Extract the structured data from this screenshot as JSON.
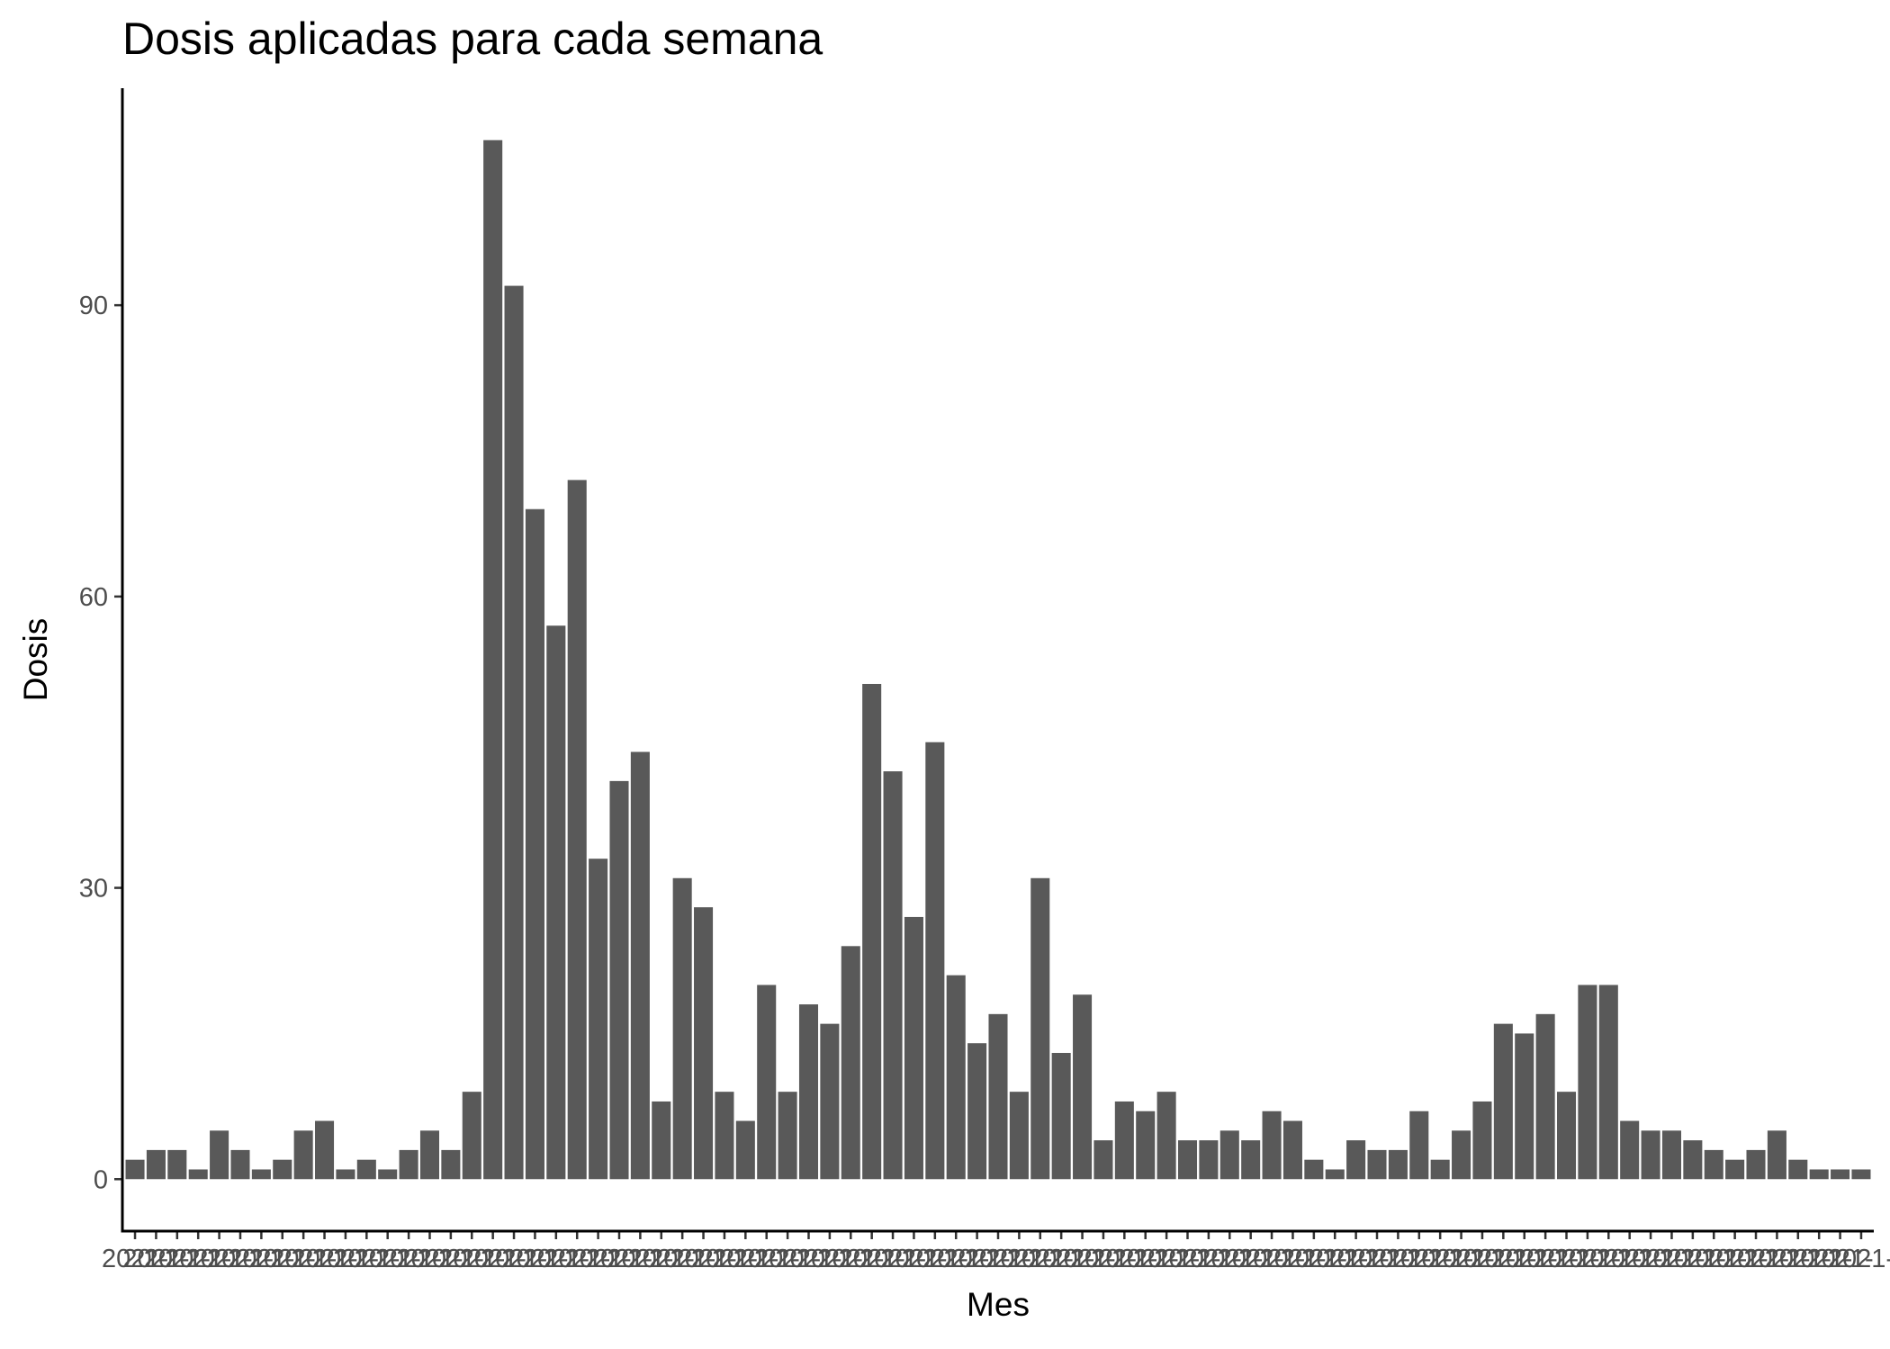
{
  "chart_data": {
    "type": "bar",
    "title": "Dosis aplicadas para cada semana",
    "xlabel": "Mes",
    "ylabel": "Dosis",
    "x_tick_text": "2021-",
    "values": [
      2,
      3,
      3,
      1,
      5,
      3,
      1,
      2,
      5,
      6,
      1,
      2,
      1,
      3,
      5,
      3,
      9,
      107,
      92,
      69,
      57,
      72,
      33,
      41,
      44,
      8,
      31,
      28,
      9,
      6,
      20,
      9,
      18,
      16,
      24,
      51,
      42,
      27,
      45,
      21,
      14,
      17,
      9,
      31,
      13,
      19,
      4,
      8,
      7,
      9,
      4,
      4,
      5,
      4,
      7,
      6,
      2,
      1,
      4,
      3,
      3,
      7,
      2,
      5,
      8,
      16,
      15,
      17,
      9,
      20,
      20,
      6,
      5,
      5,
      4,
      3,
      2,
      3,
      5,
      2,
      1,
      1,
      1
    ],
    "yticks": [
      0,
      30,
      60,
      90
    ],
    "ylim": [
      -5.35,
      112.35
    ],
    "bar_color": "#595959",
    "grid": false,
    "legend": "none"
  }
}
